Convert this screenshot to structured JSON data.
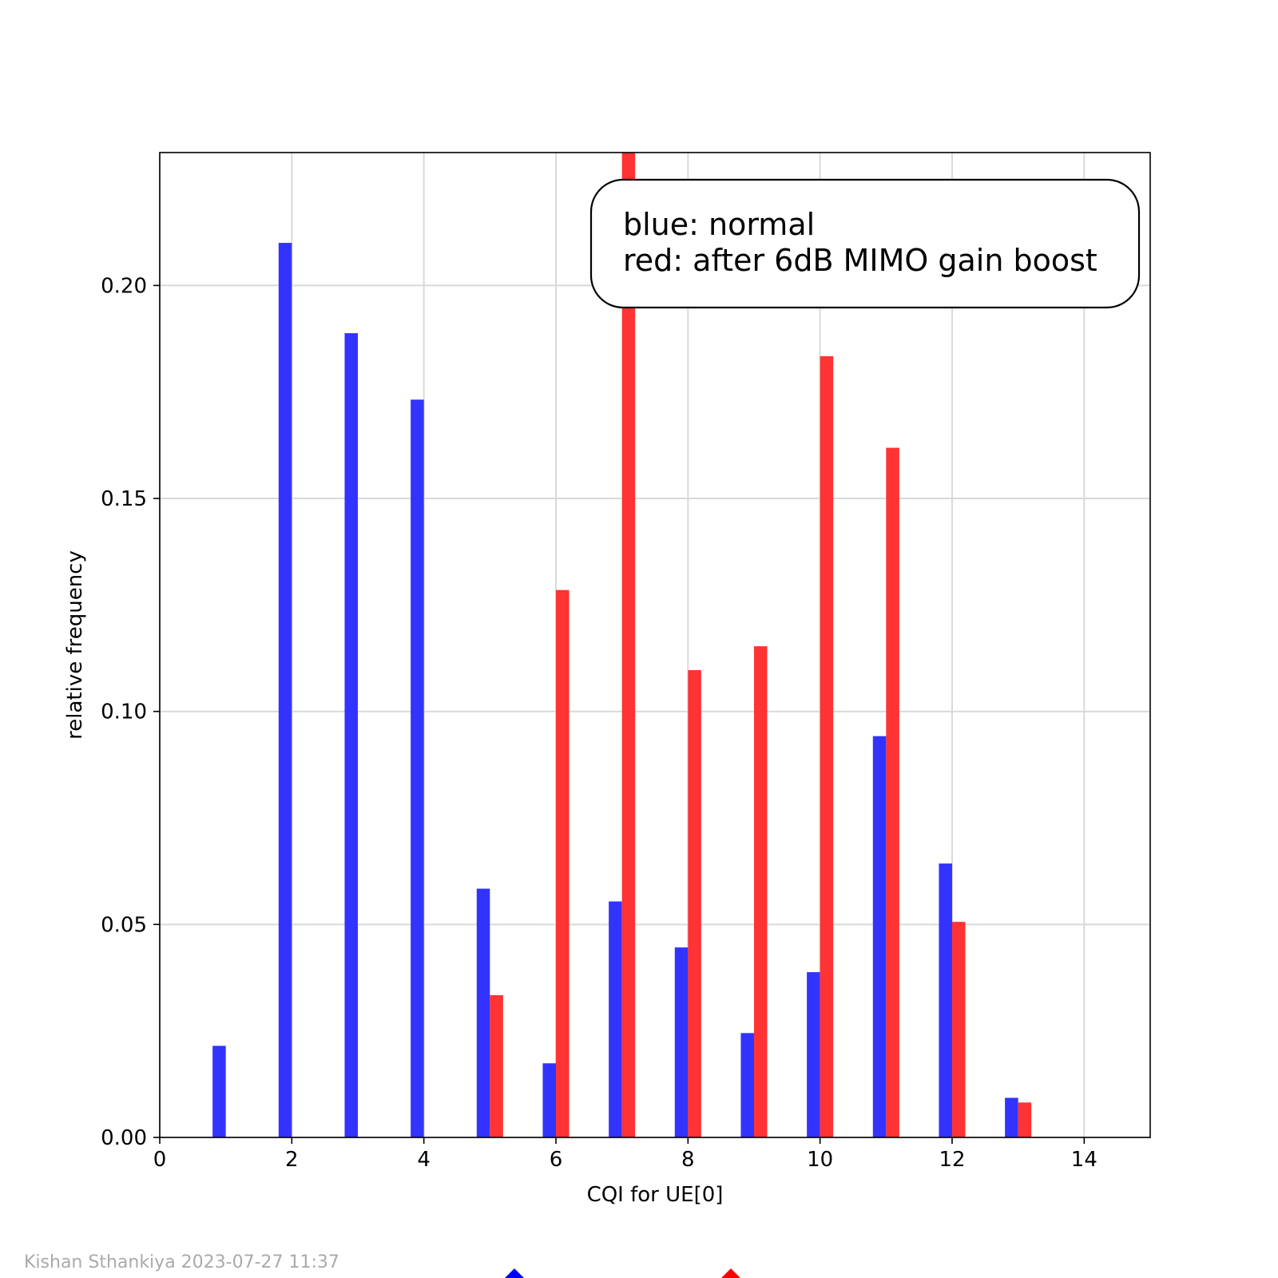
{
  "chart_data": {
    "type": "bar",
    "xlabel": "CQI for UE[0]",
    "ylabel": "relative frequency",
    "xlim": [
      0,
      15
    ],
    "ylim": [
      0,
      0.2312
    ],
    "xticks": [
      0,
      2,
      4,
      6,
      8,
      10,
      12,
      14
    ],
    "xtick_labels": [
      "0",
      "2",
      "4",
      "6",
      "8",
      "10",
      "12",
      "14"
    ],
    "yticks": [
      0.0,
      0.05,
      0.1,
      0.15,
      0.2
    ],
    "ytick_labels": [
      "0.00",
      "0.05",
      "0.10",
      "0.15",
      "0.20"
    ],
    "grid": true,
    "annotation": {
      "lines": [
        "blue: normal",
        "red: after 6dB MIMO gain boost"
      ]
    },
    "series": [
      {
        "color": "#3333ff",
        "x": [
          1,
          2,
          3,
          4,
          5,
          6,
          7,
          8,
          9,
          10,
          11,
          12,
          13
        ],
        "values": [
          0.0215,
          0.21,
          0.1888,
          0.1732,
          0.0584,
          0.0174,
          0.0554,
          0.0446,
          0.0245,
          0.0388,
          0.0942,
          0.0643,
          0.0093
        ]
      },
      {
        "color": "#ff3333",
        "x": [
          5,
          6,
          7,
          8,
          9,
          10,
          11,
          12,
          13
        ],
        "values": [
          0.0334,
          0.1285,
          0.238,
          0.1097,
          0.1153,
          0.1834,
          0.1619,
          0.0506,
          0.0082
        ]
      }
    ]
  },
  "footer": {
    "credit": "Kishan Sthankiya 2023-07-27 11:37",
    "marker_colors": [
      "#0000ff",
      "#ff0000"
    ]
  }
}
